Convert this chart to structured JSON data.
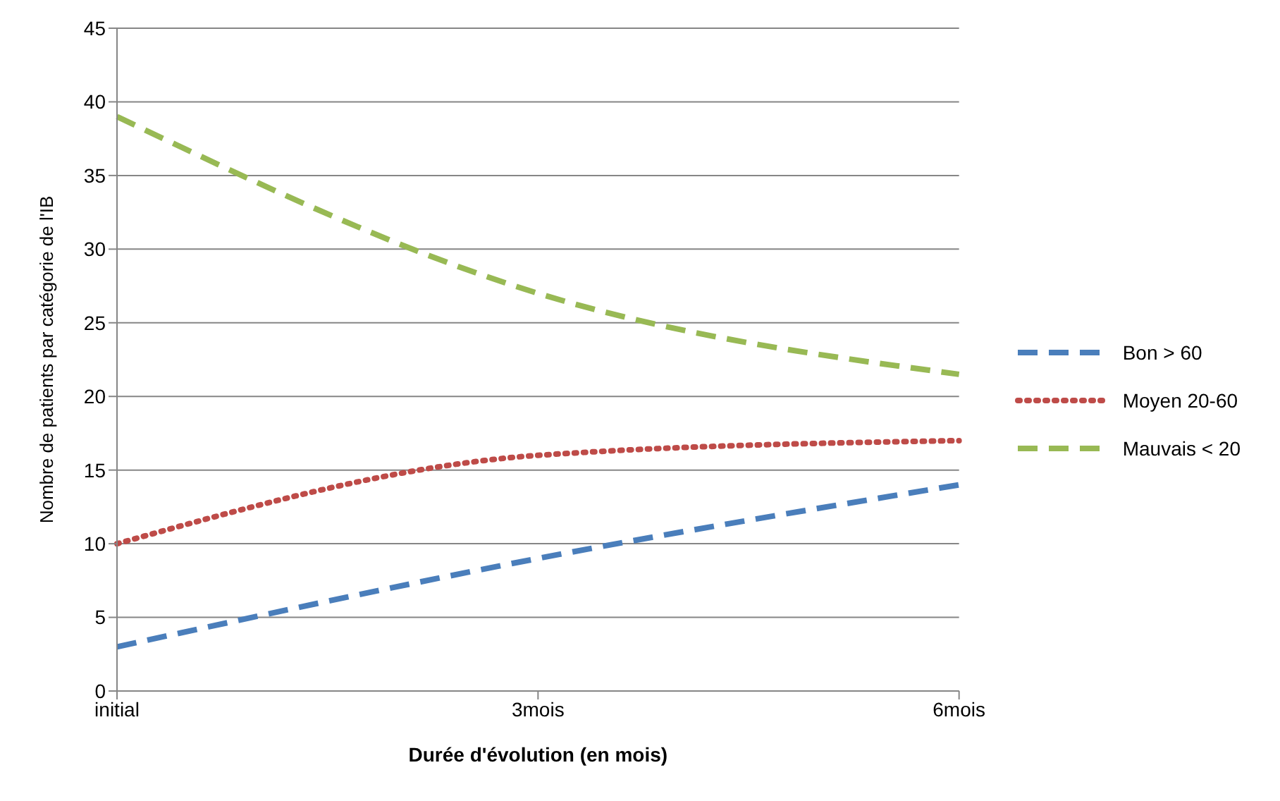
{
  "chart_data": {
    "type": "line",
    "xlabel": "Durée d'évolution (en mois)",
    "ylabel": "Nombre de patients par catégorie de l'IB",
    "categories": [
      "initial",
      "3mois",
      "6mois"
    ],
    "series": [
      {
        "name": "Bon > 60",
        "color": "#4a7ebb",
        "values": [
          3,
          9,
          14
        ],
        "line_style": "dashed"
      },
      {
        "name": "Moyen 20-60",
        "color": "#be4b48",
        "values": [
          10,
          16,
          17
        ],
        "line_style": "dotted"
      },
      {
        "name": "Mauvais < 20",
        "color": "#98b954",
        "values": [
          39,
          27,
          21.5
        ],
        "line_style": "dashed"
      }
    ],
    "ylim": [
      0,
      45
    ],
    "yticks": [
      0,
      5,
      10,
      15,
      20,
      25,
      30,
      35,
      40,
      45
    ],
    "grid": "y",
    "legend": "right",
    "marker": "none"
  }
}
